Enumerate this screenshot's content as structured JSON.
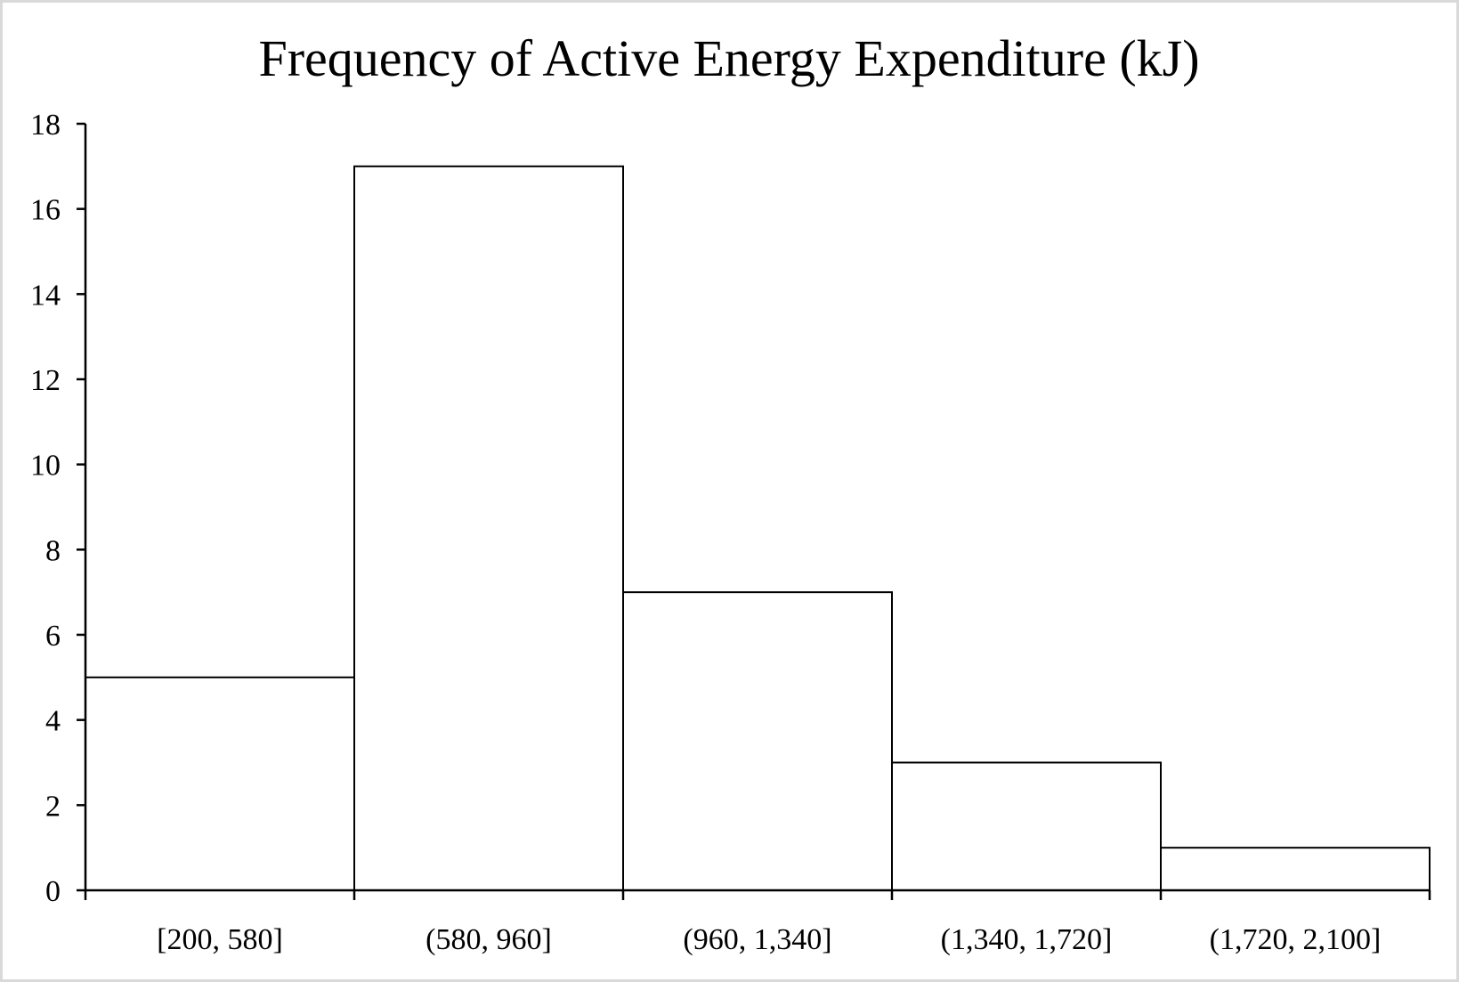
{
  "chart_data": {
    "type": "bar",
    "title": "Frequency of Active Energy Expenditure (kJ)",
    "xlabel": "",
    "ylabel": "",
    "categories": [
      "[200, 580]",
      "(580, 960]",
      "(960, 1,340]",
      "(1,340, 1,720]",
      "(1,720, 2,100]"
    ],
    "values": [
      5,
      17,
      7,
      3,
      1
    ],
    "ylim": [
      0,
      18
    ],
    "yticks": [
      0,
      2,
      4,
      6,
      8,
      10,
      12,
      14,
      16,
      18
    ],
    "grid": false,
    "legend": "none",
    "bar_fill": "#ffffff",
    "bar_stroke": "#000000"
  }
}
